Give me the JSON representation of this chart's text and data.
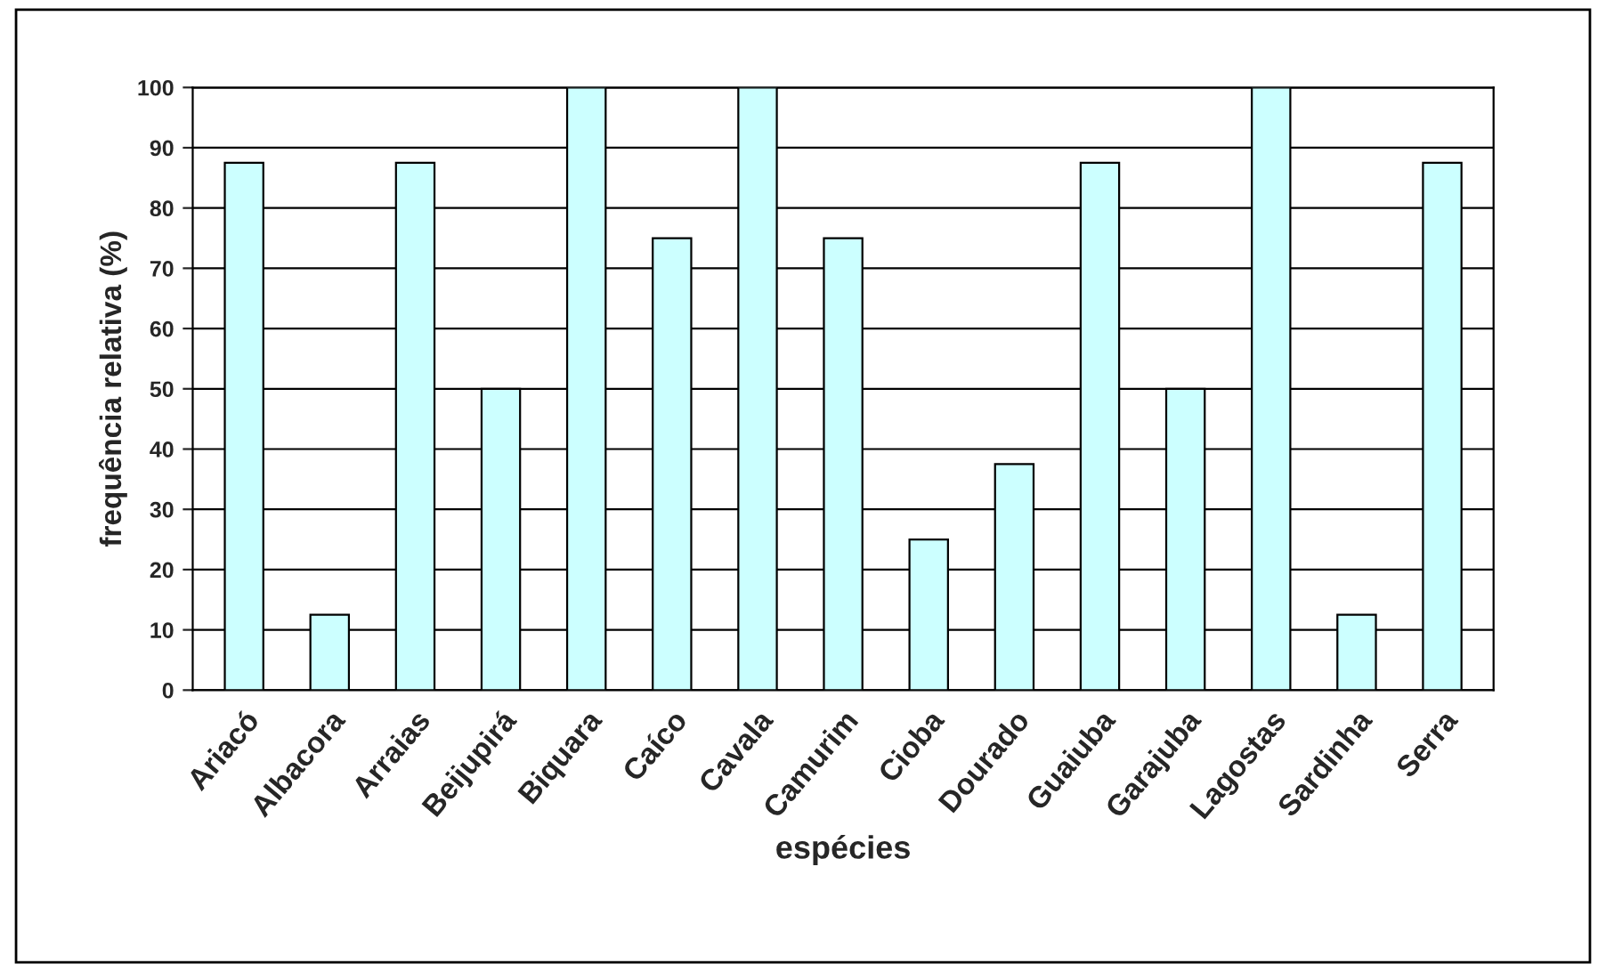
{
  "chart_data": {
    "type": "bar",
    "xlabel": "espécies",
    "ylabel": "frequência relativa (%)",
    "categories": [
      "Ariacó",
      "Albacora",
      "Arraias",
      "Beijupirá",
      "Biquara",
      "Caíco",
      "Cavala",
      "Camurim",
      "Cioba",
      "Dourado",
      "Guaiuba",
      "Garajuba",
      "Lagostas",
      "Sardinha",
      "Serra"
    ],
    "values": [
      87.5,
      12.5,
      87.5,
      50,
      100,
      75,
      100,
      75,
      25,
      37.5,
      87.5,
      50,
      100,
      12.5,
      87.5
    ],
    "color": "#ccffff",
    "ylim": [
      0,
      100
    ],
    "yticks": [
      0,
      10,
      20,
      30,
      40,
      50,
      60,
      70,
      80,
      90,
      100
    ],
    "grid": "y"
  }
}
